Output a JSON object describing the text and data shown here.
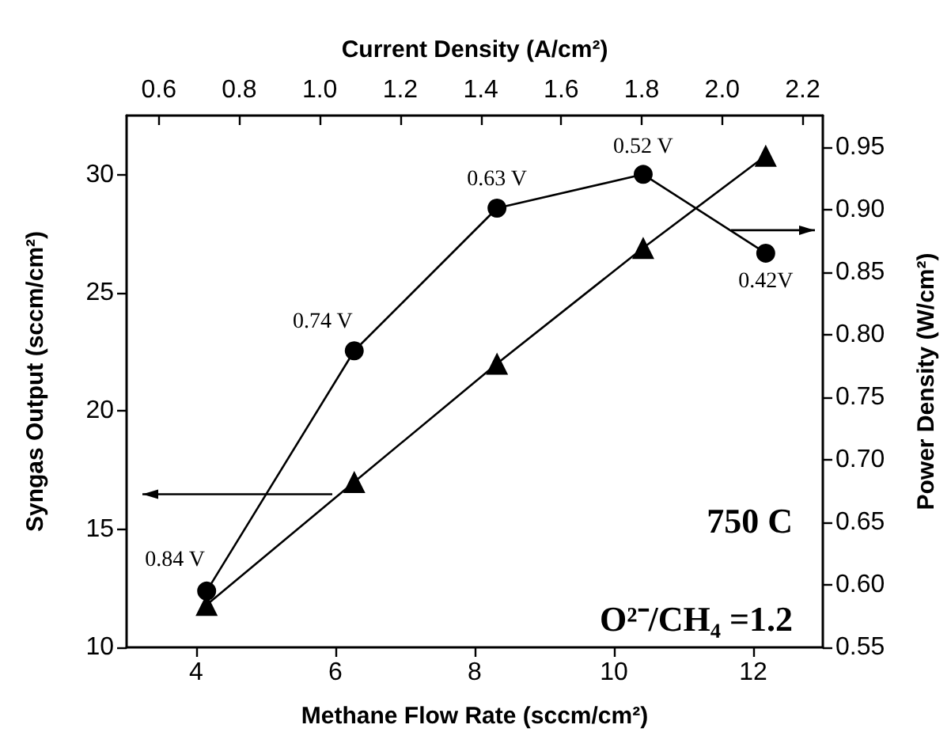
{
  "chart_data": {
    "type": "line",
    "xlabel": "Methane Flow Rate (sccm/cm²)",
    "x2label": "Current Density (A/cm²)",
    "ylabel": "Syngas Output (sccm/cm²)",
    "y2label": "Power Density (W/cm²)",
    "x": [
      4.15,
      6.27,
      8.32,
      10.42,
      12.18
    ],
    "series": [
      {
        "color": "#000000",
        "marker": "triangle",
        "values": [
          11.8,
          17.0,
          22.0,
          26.9,
          30.8
        ]
      },
      {
        "color": "#000000",
        "marker": "circle",
        "axis": "y2",
        "values": [
          0.595,
          0.787,
          0.901,
          0.928,
          0.865
        ]
      }
    ],
    "xlim": [
      3,
      13
    ],
    "xticks": [
      4,
      6,
      8,
      10,
      12
    ],
    "x2lim": [
      0.52,
      2.25
    ],
    "x2ticks": [
      0.6,
      0.8,
      {
        "value": 1,
        "label": "1.0"
      },
      1.2,
      1.4,
      1.6,
      1.8,
      {
        "value": 2,
        "label": "2.0"
      },
      2.2
    ],
    "ylim": [
      10,
      32.5
    ],
    "yticks": [
      10,
      15,
      20,
      25,
      30
    ],
    "y2lim": [
      0.55,
      0.975
    ],
    "y2ticks": [
      0.55,
      {
        "value": 0.6,
        "label": "0.60"
      },
      0.65,
      {
        "value": 0.7,
        "label": "0.70"
      },
      0.75,
      {
        "value": 0.8,
        "label": "0.80"
      },
      0.85,
      {
        "value": 0.9,
        "label": "0.90"
      },
      0.95
    ],
    "annotations": [
      {
        "text": "0.84 V",
        "x": 4.15,
        "y": 12.4
      },
      {
        "text": "0.74 V",
        "x": 6.27,
        "y": 22.5
      },
      {
        "text": "0.63 V",
        "x": 8.32,
        "y": 28.5
      },
      {
        "text": "0.52 V",
        "x": 10.42,
        "y": 29.9
      },
      {
        "text": "0.42V",
        "x": 12.18,
        "y": 26.6
      },
      "750 C",
      "O²⁻/CH₄ =1.2"
    ],
    "line_style": "solid",
    "grid": false
  }
}
